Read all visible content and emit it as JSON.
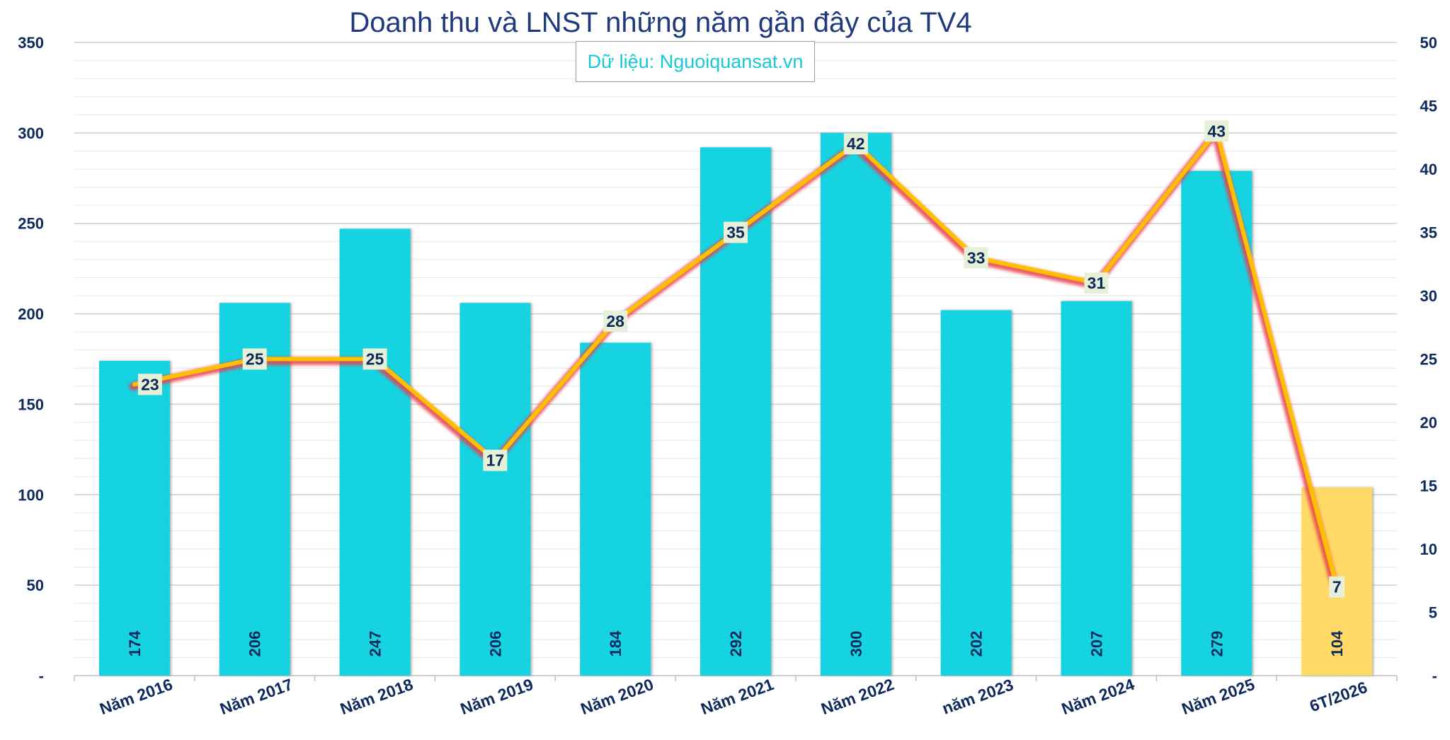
{
  "chart_data": {
    "type": "bar",
    "title": "Doanh thu và LNST những năm gần đây của TV4",
    "source": "Dữ liệu: Nguoiquansat.vn",
    "categories": [
      "Năm 2016",
      "Năm 2017",
      "Năm 2018",
      "Năm 2019",
      "Năm 2020",
      "Năm 2021",
      "Năm 2022",
      "năm 2023",
      "Năm 2024",
      "Năm 2025",
      "6T/2026"
    ],
    "series": [
      {
        "type": "bar",
        "axis": "left",
        "values": [
          174,
          206,
          247,
          206,
          184,
          292,
          300,
          202,
          207,
          279,
          104
        ],
        "colors": [
          "#13d3e2",
          "#13d3e2",
          "#13d3e2",
          "#13d3e2",
          "#13d3e2",
          "#13d3e2",
          "#13d3e2",
          "#13d3e2",
          "#13d3e2",
          "#13d3e2",
          "#ffd966"
        ]
      },
      {
        "type": "line",
        "axis": "right",
        "values": [
          23,
          25,
          25,
          17,
          28,
          35,
          42,
          33,
          31,
          43,
          7
        ],
        "color": "#ffc000",
        "shadow_color": "#e8414f"
      }
    ],
    "y_left": {
      "min": 0,
      "max": 350,
      "ticks": [
        {
          "value": 0,
          "label": "-"
        },
        {
          "value": 50,
          "label": "50"
        },
        {
          "value": 100,
          "label": "100"
        },
        {
          "value": 150,
          "label": "150"
        },
        {
          "value": 200,
          "label": "200"
        },
        {
          "value": 250,
          "label": "250"
        },
        {
          "value": 300,
          "label": "300"
        },
        {
          "value": 350,
          "label": "350"
        }
      ]
    },
    "y_right": {
      "min": 0,
      "max": 50,
      "ticks": [
        {
          "value": 0,
          "label": "-"
        },
        {
          "value": 5,
          "label": "5"
        },
        {
          "value": 10,
          "label": "10"
        },
        {
          "value": 15,
          "label": "15"
        },
        {
          "value": 20,
          "label": "20"
        },
        {
          "value": 25,
          "label": "25"
        },
        {
          "value": 30,
          "label": "30"
        },
        {
          "value": 35,
          "label": "35"
        },
        {
          "value": 40,
          "label": "40"
        },
        {
          "value": 45,
          "label": "45"
        },
        {
          "value": 50,
          "label": "50"
        }
      ]
    },
    "grid": true,
    "axis_text_color": "#0e2a5c",
    "grid_color": "#d9d9d9"
  }
}
